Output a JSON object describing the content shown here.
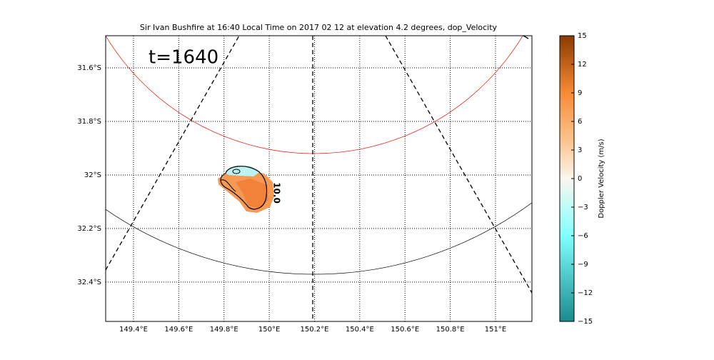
{
  "chart_data": {
    "type": "radar-map",
    "title": "Sir Ivan Bushfire at 16:40 Local Time on 2017 02 12 at elevation 4.2 degrees, dop_Velocity",
    "annotation": "t=1640",
    "contour_label": "10.0",
    "xlim": [
      149.277,
      151.161
    ],
    "xticks": [
      {
        "value": 149.4,
        "label": "149.4°E"
      },
      {
        "value": 149.6,
        "label": "149.6°E"
      },
      {
        "value": 149.8,
        "label": "149.8°E"
      },
      {
        "value": 150,
        "label": "150°E"
      },
      {
        "value": 150.2,
        "label": "150.2°E"
      },
      {
        "value": 150.4,
        "label": "150.4°E"
      },
      {
        "value": 150.6,
        "label": "150.6°E"
      },
      {
        "value": 150.8,
        "label": "150.8°E"
      },
      {
        "value": 151,
        "label": "151°E"
      }
    ],
    "ylim": [
      -31.48,
      -32.547
    ],
    "yticks": [
      {
        "value": -31.6,
        "label": "31.6°S"
      },
      {
        "value": -31.8,
        "label": "31.8°S"
      },
      {
        "value": -32,
        "label": "32°S"
      },
      {
        "value": -32.2,
        "label": "32.2°S"
      },
      {
        "value": -32.4,
        "label": "32.4°S"
      }
    ],
    "grid": true,
    "colorbar": {
      "label": "Doppler Velocity (m/s)",
      "lim": [
        -15,
        15
      ],
      "ticks": [
        {
          "value": -15,
          "label": "−15"
        },
        {
          "value": -12,
          "label": "−12"
        },
        {
          "value": -9,
          "label": "−9"
        },
        {
          "value": -6,
          "label": "−6"
        },
        {
          "value": -3,
          "label": "−3"
        },
        0,
        3,
        6,
        9,
        12,
        15
      ]
    }
  }
}
